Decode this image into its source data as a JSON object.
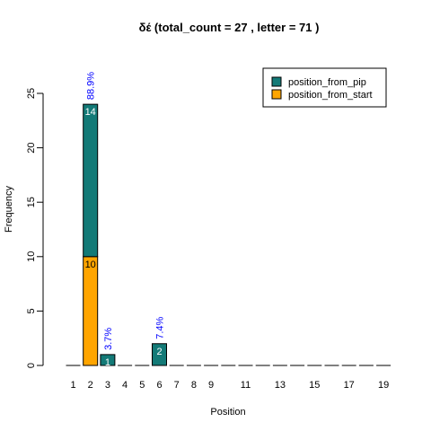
{
  "chart_data": {
    "type": "bar",
    "stacked": true,
    "title": "δέ  (total_count =  27 , letter = 71 )",
    "xlabel": "Position",
    "ylabel": "Frequency",
    "ylim": [
      0,
      25
    ],
    "yticks": [
      0,
      5,
      10,
      15,
      20,
      25
    ],
    "categories": [
      "1",
      "2",
      "3",
      "4",
      "5",
      "6",
      "7",
      "8",
      "9",
      "10",
      "11",
      "12",
      "13",
      "14",
      "15",
      "16",
      "17",
      "18",
      "19"
    ],
    "x_tick_labels": [
      "1",
      "2",
      "3",
      "4",
      "5",
      "6",
      "7",
      "8",
      "9",
      "11",
      "13",
      "15",
      "17",
      "19"
    ],
    "series": [
      {
        "name": "position_from_start",
        "color": "#FFA500",
        "label_color": "#000000",
        "values": [
          0,
          10,
          0,
          0,
          0,
          0,
          0,
          0,
          0,
          0,
          0,
          0,
          0,
          0,
          0,
          0,
          0,
          0,
          0
        ]
      },
      {
        "name": "position_from_pip",
        "color": "#137A77",
        "label_color": "#ffffff",
        "values": [
          0,
          14,
          1,
          0,
          0,
          2,
          0,
          0,
          0,
          0,
          0,
          0,
          0,
          0,
          0,
          0,
          0,
          0,
          0
        ]
      }
    ],
    "percent_labels": [
      {
        "category": "2",
        "text": "88.9%",
        "total": 24
      },
      {
        "category": "3",
        "text": "3.7%",
        "total": 1
      },
      {
        "category": "6",
        "text": "7.4%",
        "total": 2
      }
    ],
    "legend": {
      "position": "top-right",
      "entries": [
        "position_from_pip",
        "position_from_start"
      ]
    },
    "grid": false
  }
}
